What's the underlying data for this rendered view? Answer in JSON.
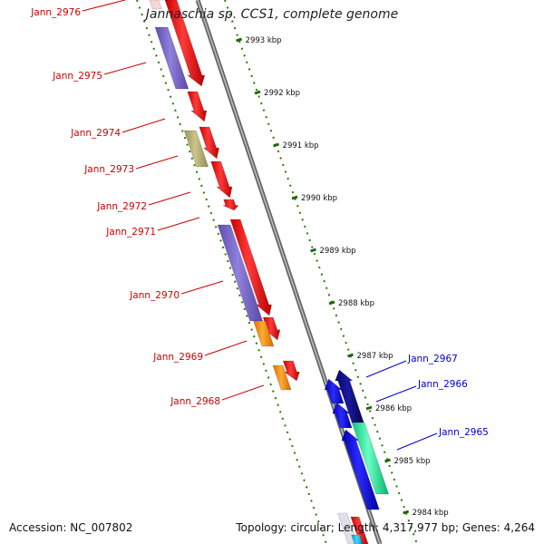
{
  "title": "Jannaschia sp. CCS1, complete genome",
  "footer": {
    "accession": "Accession: NC_007802",
    "summary": "Topology: circular; Length: 4,317,977 bp; Genes: 4,264"
  },
  "ruler_ticks": [
    "2993 kbp",
    "2992 kbp",
    "2991 kbp",
    "2990 kbp",
    "2989 kbp",
    "2988 kbp",
    "2987 kbp",
    "2986 kbp",
    "2985 kbp",
    "2984 kbp"
  ],
  "genes_left": [
    "Jann_2976",
    "Jann_2975",
    "Jann_2974",
    "Jann_2973",
    "Jann_2972",
    "Jann_2971",
    "Jann_2970",
    "Jann_2969",
    "Jann_2968"
  ],
  "genes_right": [
    "Jann_2967",
    "Jann_2966",
    "Jann_2965"
  ],
  "colors": {
    "left_label": "#cc0000",
    "right_label": "#0000cc",
    "ruler": "#2a7a00",
    "backbone": "#888888",
    "cds_forward": "#ff0000",
    "cds_reverse": "#0000ff",
    "purple_feature": "#7b68c8",
    "olive_feature": "#b8b070",
    "orange_feature": "#ff8c00",
    "navy_feature": "#0a0a80",
    "teal_feature": "#2ee8a0"
  }
}
